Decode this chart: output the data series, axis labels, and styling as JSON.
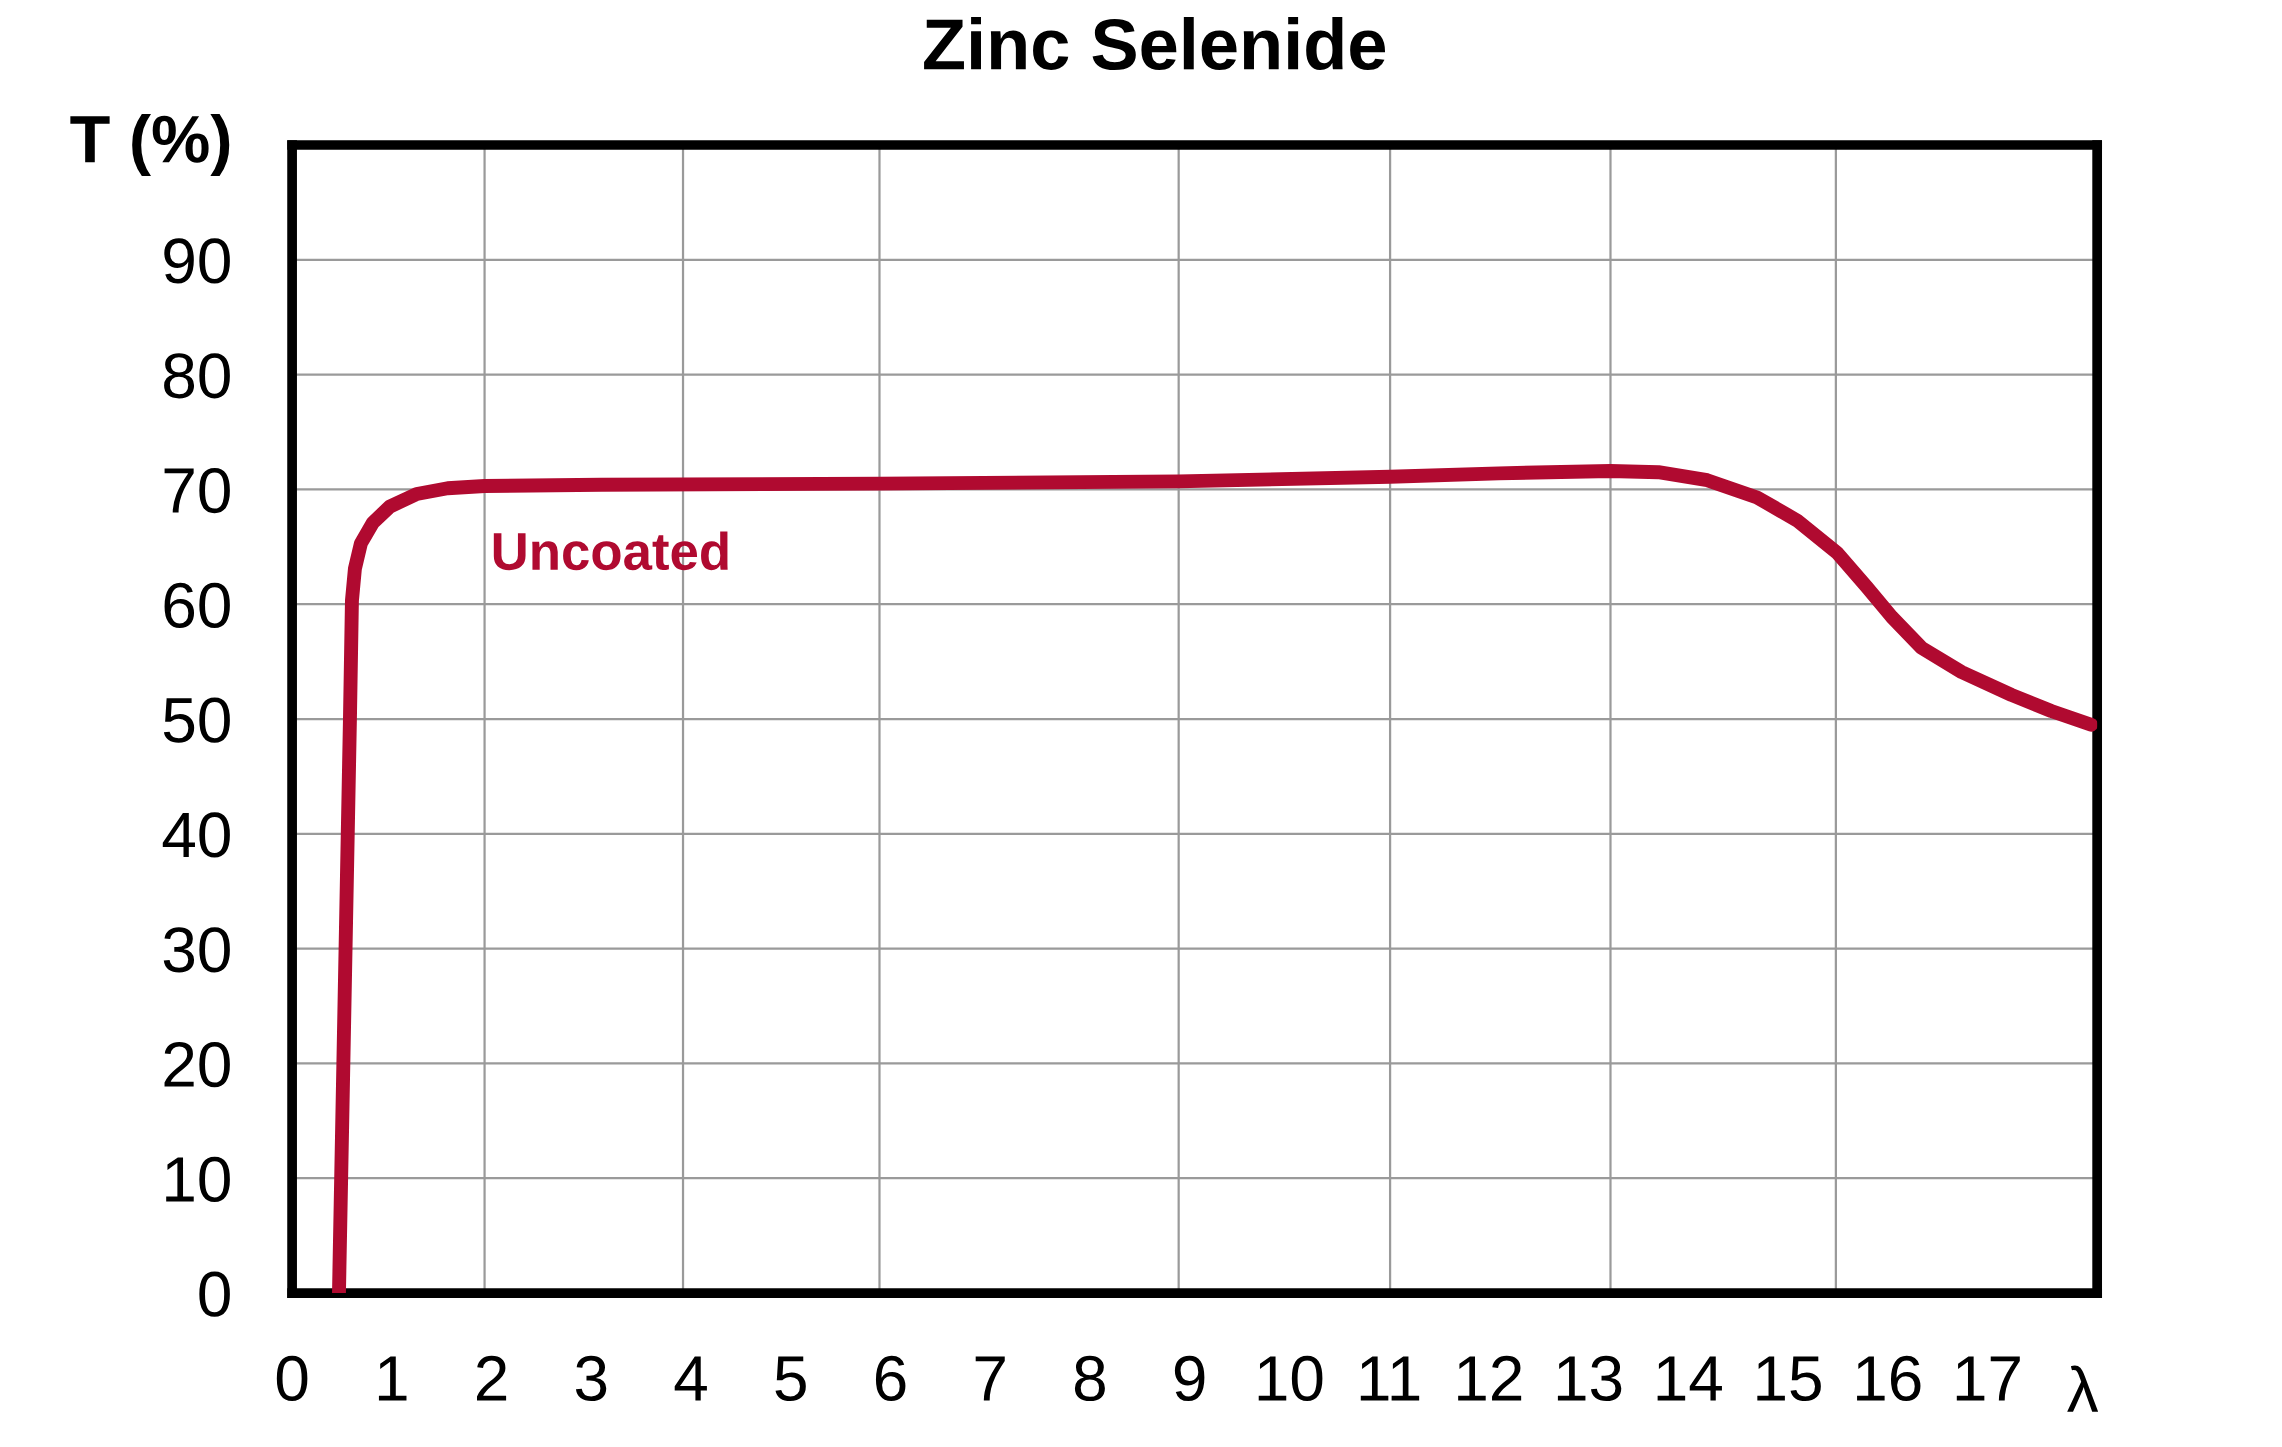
{
  "chart_data": {
    "type": "line",
    "title": "Zinc Selenide",
    "xlabel": "λ",
    "ylabel": "T (%)",
    "xlim": [
      0,
      18.1
    ],
    "xticks": [
      0,
      1,
      2,
      3,
      4,
      5,
      6,
      7,
      8,
      9,
      10,
      11,
      12,
      13,
      14,
      15,
      16,
      17
    ],
    "ylim": [
      0,
      100
    ],
    "yticks": [
      0,
      10,
      20,
      30,
      40,
      50,
      60,
      70,
      80,
      90
    ],
    "grid": "y",
    "line_style": "solid",
    "ref_lines": [
      {
        "axis": "x",
        "value": 1.93,
        "color": "#9a9a9a"
      },
      {
        "axis": "x",
        "value": 3.92,
        "color": "#9a9a9a"
      },
      {
        "axis": "x",
        "value": 5.89,
        "color": "#9a9a9a"
      },
      {
        "axis": "x",
        "value": 8.89,
        "color": "#9a9a9a"
      },
      {
        "axis": "x",
        "value": 11.01,
        "color": "#9a9a9a"
      },
      {
        "axis": "x",
        "value": 13.22,
        "color": "#9a9a9a"
      },
      {
        "axis": "x",
        "value": 15.48,
        "color": "#9a9a9a"
      }
    ],
    "series": [
      {
        "name": "Uncoated",
        "color": "#b00a30",
        "x": [
          0.47,
          0.58,
          0.6,
          0.63,
          0.69,
          0.81,
          0.98,
          1.25,
          1.56,
          1.93,
          3.1,
          5.9,
          8.89,
          11.01,
          12.1,
          13.22,
          13.7,
          14.19,
          14.69,
          15.09,
          15.49,
          15.79,
          16.04,
          16.34,
          16.74,
          17.24,
          17.64,
          18.04
        ],
        "values": [
          0,
          50,
          60.3,
          63.1,
          65.3,
          67.1,
          68.5,
          69.6,
          70.1,
          70.3,
          70.4,
          70.5,
          70.7,
          71.1,
          71.4,
          71.6,
          71.5,
          70.8,
          69.3,
          67.3,
          64.5,
          61.5,
          58.9,
          56.2,
          54.1,
          52.1,
          50.7,
          49.5
        ]
      }
    ]
  }
}
